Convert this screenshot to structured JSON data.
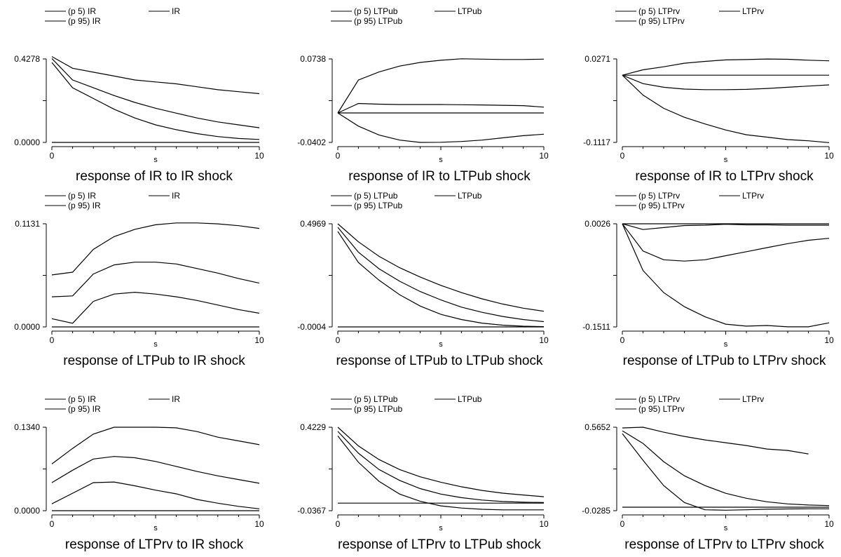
{
  "chart_data": [
    {
      "type": "line",
      "title": "response of IR to IR shock",
      "xlabel": "s",
      "x": [
        0,
        1,
        2,
        3,
        4,
        5,
        6,
        7,
        8,
        9,
        10
      ],
      "xlim": [
        0,
        10
      ],
      "xticks": [
        0,
        10
      ],
      "ylim": [
        0,
        0.4278
      ],
      "yticks": [
        "0.0000",
        "0.4278"
      ],
      "legend": [
        "(p 5) IR",
        "IR",
        "(p 95) IR"
      ],
      "series": [
        {
          "values": [
            0.44,
            0.38,
            0.36,
            0.34,
            0.32,
            0.31,
            0.3,
            0.285,
            0.27,
            0.26,
            0.25
          ]
        },
        {
          "values": [
            0.43,
            0.32,
            0.28,
            0.24,
            0.205,
            0.175,
            0.15,
            0.125,
            0.105,
            0.09,
            0.075
          ]
        },
        {
          "values": [
            0.41,
            0.28,
            0.225,
            0.17,
            0.125,
            0.09,
            0.065,
            0.045,
            0.03,
            0.02,
            0.015
          ]
        },
        {
          "values": [
            0,
            0,
            0,
            0,
            0,
            0,
            0,
            0,
            0,
            0,
            0
          ]
        }
      ]
    },
    {
      "type": "line",
      "title": "response of IR to LTPub shock",
      "xlabel": "s",
      "x": [
        0,
        1,
        2,
        3,
        4,
        5,
        6,
        7,
        8,
        9,
        10
      ],
      "xlim": [
        0,
        10
      ],
      "xticks": [
        0,
        10
      ],
      "ylim": [
        -0.0402,
        0.0738
      ],
      "yticks": [
        "-0.0402",
        "0.0738"
      ],
      "legend": [
        "(p 5) LTPub",
        "LTPub",
        "(p 95) LTPub"
      ],
      "series": [
        {
          "values": [
            0,
            0.045,
            0.056,
            0.064,
            0.069,
            0.072,
            0.074,
            0.0735,
            0.073,
            0.073,
            0.0735
          ]
        },
        {
          "values": [
            0,
            0.013,
            0.012,
            0.0115,
            0.0115,
            0.0115,
            0.0112,
            0.011,
            0.0105,
            0.01,
            0.008
          ]
        },
        {
          "values": [
            0,
            0,
            0,
            0,
            0,
            0,
            0,
            0,
            0,
            0,
            0
          ]
        },
        {
          "values": [
            0,
            -0.018,
            -0.03,
            -0.037,
            -0.0402,
            -0.04,
            -0.039,
            -0.037,
            -0.034,
            -0.031,
            -0.029
          ]
        }
      ]
    },
    {
      "type": "line",
      "title": "response of IR to LTPrv shock",
      "xlabel": "s",
      "x": [
        0,
        1,
        2,
        3,
        4,
        5,
        6,
        7,
        8,
        9,
        10
      ],
      "xlim": [
        0,
        10
      ],
      "xticks": [
        0,
        10
      ],
      "ylim": [
        -0.1117,
        0.0271
      ],
      "yticks": [
        "-0.1117",
        "0.0271"
      ],
      "legend": [
        "(p 5) LTPrv",
        "LTPrv",
        "(p 95) LTPrv"
      ],
      "series": [
        {
          "values": [
            0,
            0.009,
            0.014,
            0.02,
            0.023,
            0.0255,
            0.026,
            0.027,
            0.0265,
            0.025,
            0.024
          ]
        },
        {
          "values": [
            0,
            0,
            0,
            0,
            0,
            0,
            0,
            0,
            0,
            0,
            0
          ]
        },
        {
          "values": [
            0,
            -0.014,
            -0.02,
            -0.023,
            -0.024,
            -0.024,
            -0.0235,
            -0.022,
            -0.02,
            -0.018,
            -0.016
          ]
        },
        {
          "values": [
            0,
            -0.033,
            -0.055,
            -0.07,
            -0.081,
            -0.091,
            -0.099,
            -0.103,
            -0.107,
            -0.109,
            -0.112
          ]
        }
      ]
    },
    {
      "type": "line",
      "title": "response of LTPub to IR shock",
      "xlabel": "s",
      "x": [
        0,
        1,
        2,
        3,
        4,
        5,
        6,
        7,
        8,
        9,
        10
      ],
      "xlim": [
        0,
        10
      ],
      "xticks": [
        0,
        10
      ],
      "ylim": [
        0,
        0.1131
      ],
      "yticks": [
        "0.0000",
        "0.1131"
      ],
      "legend": [
        "(p 5) IR",
        "IR",
        "(p 95) IR"
      ],
      "series": [
        {
          "values": [
            0.057,
            0.06,
            0.085,
            0.099,
            0.107,
            0.112,
            0.114,
            0.114,
            0.113,
            0.111,
            0.108
          ]
        },
        {
          "values": [
            0.033,
            0.034,
            0.058,
            0.068,
            0.071,
            0.071,
            0.069,
            0.064,
            0.059,
            0.053,
            0.048
          ]
        },
        {
          "values": [
            0.009,
            0.004,
            0.028,
            0.036,
            0.038,
            0.036,
            0.033,
            0.029,
            0.024,
            0.019,
            0.015
          ]
        },
        {
          "values": [
            0,
            0,
            0,
            0,
            0,
            0,
            0,
            0,
            0,
            0,
            0
          ]
        }
      ]
    },
    {
      "type": "line",
      "title": "response of LTPub to LTPub shock",
      "xlabel": "s",
      "x": [
        0,
        1,
        2,
        3,
        4,
        5,
        6,
        7,
        8,
        9,
        10
      ],
      "xlim": [
        0,
        10
      ],
      "xticks": [
        0,
        10
      ],
      "ylim": [
        -0.0004,
        0.4969
      ],
      "yticks": [
        "-0.0004",
        "0.4969"
      ],
      "legend": [
        "(p 5) LTPub",
        "LTPub",
        "(p 95) LTPub"
      ],
      "series": [
        {
          "values": [
            0.497,
            0.41,
            0.34,
            0.285,
            0.24,
            0.2,
            0.165,
            0.135,
            0.11,
            0.09,
            0.075
          ]
        },
        {
          "values": [
            0.48,
            0.36,
            0.28,
            0.22,
            0.17,
            0.13,
            0.095,
            0.07,
            0.05,
            0.035,
            0.025
          ]
        },
        {
          "values": [
            0.46,
            0.31,
            0.225,
            0.155,
            0.1,
            0.06,
            0.035,
            0.018,
            0.008,
            0.003,
            0.001
          ]
        },
        {
          "values": [
            -0.0004,
            -0.0004,
            -0.0004,
            -0.0004,
            -0.0004,
            -0.0004,
            -0.0004,
            -0.0004,
            -0.0004,
            -0.0004,
            -0.0004
          ]
        }
      ]
    },
    {
      "type": "line",
      "title": "response of LTPub to LTPrv shock",
      "xlabel": "s",
      "x": [
        0,
        1,
        2,
        3,
        4,
        5,
        6,
        7,
        8,
        9,
        10
      ],
      "xlim": [
        0,
        10
      ],
      "xticks": [
        0,
        10
      ],
      "ylim": [
        -0.1511,
        0.0026
      ],
      "yticks": [
        "-0.1511",
        "0.0026"
      ],
      "legend": [
        "(p 5) LTPrv",
        "LTPrv",
        "(p 95) LTPrv"
      ],
      "series": [
        {
          "values": [
            0.0026,
            -0.006,
            -0.003,
            0,
            0.0005,
            0.002,
            0.001,
            0.001,
            0.0005,
            0.0005,
            0.0005
          ]
        },
        {
          "values": [
            0.0026,
            0.0026,
            0.0026,
            0.0026,
            0.0026,
            0.0026,
            0.0026,
            0.0026,
            0.0026,
            0.0026,
            0.0026
          ]
        },
        {
          "values": [
            0.0026,
            -0.038,
            -0.051,
            -0.053,
            -0.051,
            -0.045,
            -0.039,
            -0.033,
            -0.027,
            -0.022,
            -0.019
          ]
        },
        {
          "values": [
            0.0026,
            -0.067,
            -0.1,
            -0.121,
            -0.136,
            -0.147,
            -0.15,
            -0.149,
            -0.151,
            -0.151,
            -0.145
          ]
        }
      ]
    },
    {
      "type": "line",
      "title": "response of LTPrv to IR shock",
      "xlabel": "s",
      "x": [
        0,
        1,
        2,
        3,
        4,
        5,
        6,
        7,
        8,
        9,
        10
      ],
      "xlim": [
        0,
        10
      ],
      "xticks": [
        0,
        10
      ],
      "ylim": [
        0,
        0.134
      ],
      "yticks": [
        "0.0000",
        "0.1340"
      ],
      "legend": [
        "(p 5) IR",
        "IR",
        "(p 95) IR"
      ],
      "series": [
        {
          "values": [
            0.075,
            0.1,
            0.123,
            0.134,
            0.134,
            0.134,
            0.133,
            0.127,
            0.118,
            0.112,
            0.106
          ]
        },
        {
          "values": [
            0.045,
            0.065,
            0.083,
            0.087,
            0.085,
            0.079,
            0.071,
            0.063,
            0.056,
            0.05,
            0.044
          ]
        },
        {
          "values": [
            0.011,
            0.028,
            0.045,
            0.046,
            0.04,
            0.033,
            0.027,
            0.018,
            0.012,
            0.007,
            0.003
          ]
        },
        {
          "values": [
            0,
            0,
            0,
            0,
            0,
            0,
            0,
            0,
            0,
            0,
            0
          ]
        }
      ]
    },
    {
      "type": "line",
      "title": "response of LTPrv to LTPub shock",
      "xlabel": "s",
      "x": [
        0,
        1,
        2,
        3,
        4,
        5,
        6,
        7,
        8,
        9,
        10
      ],
      "xlim": [
        0,
        10
      ],
      "xticks": [
        0,
        10
      ],
      "ylim": [
        -0.0367,
        0.4229
      ],
      "yticks": [
        "-0.0367",
        "0.4229"
      ],
      "legend": [
        "(p 5) LTPub",
        "LTPub",
        "(p 95) LTPub"
      ],
      "series": [
        {
          "values": [
            0.423,
            0.32,
            0.245,
            0.19,
            0.15,
            0.12,
            0.095,
            0.075,
            0.06,
            0.05,
            0.04
          ]
        },
        {
          "values": [
            0.4,
            0.28,
            0.19,
            0.13,
            0.085,
            0.055,
            0.035,
            0.022,
            0.014,
            0.01,
            0.008
          ]
        },
        {
          "values": [
            0.375,
            0.23,
            0.125,
            0.055,
            0.015,
            -0.01,
            -0.022,
            -0.029,
            -0.032,
            -0.032,
            -0.032
          ]
        },
        {
          "values": [
            0.005,
            0.005,
            0.005,
            0.005,
            0.005,
            0.005,
            0.005,
            0.005,
            0.005,
            0.005,
            0.005
          ]
        }
      ]
    },
    {
      "type": "line",
      "title": "response of LTPrv to LTPrv shock",
      "xlabel": "s",
      "x": [
        0,
        1,
        2,
        3,
        4,
        5,
        6,
        7,
        8,
        9,
        10
      ],
      "xlim": [
        0,
        10
      ],
      "xticks": [
        0,
        10
      ],
      "ylim": [
        -0.0285,
        0.5652
      ],
      "yticks": [
        "-0.0285",
        "0.5652"
      ],
      "legend": [
        "(p 5) LTPrv",
        "LTPrv",
        "(p 95) LTPrv"
      ],
      "series": [
        {
          "values": [
            0.56,
            0.5652,
            0.53,
            0.5,
            0.475,
            0.455,
            0.435,
            0.41,
            0.4,
            0.375,
            null
          ]
        },
        {
          "values": [
            0.54,
            0.45,
            0.32,
            0.22,
            0.15,
            0.095,
            0.06,
            0.035,
            0.02,
            0.012,
            0.008
          ]
        },
        {
          "values": [
            0.52,
            0.33,
            0.15,
            0.03,
            -0.022,
            -0.025,
            -0.022,
            -0.018,
            -0.016,
            -0.015,
            -0.015
          ]
        },
        {
          "values": [
            -0.0035,
            -0.0035,
            -0.0035,
            -0.0035,
            -0.0035,
            -0.0035,
            -0.0035,
            -0.0035,
            -0.0035,
            -0.0035,
            -0.0035
          ]
        }
      ]
    }
  ]
}
